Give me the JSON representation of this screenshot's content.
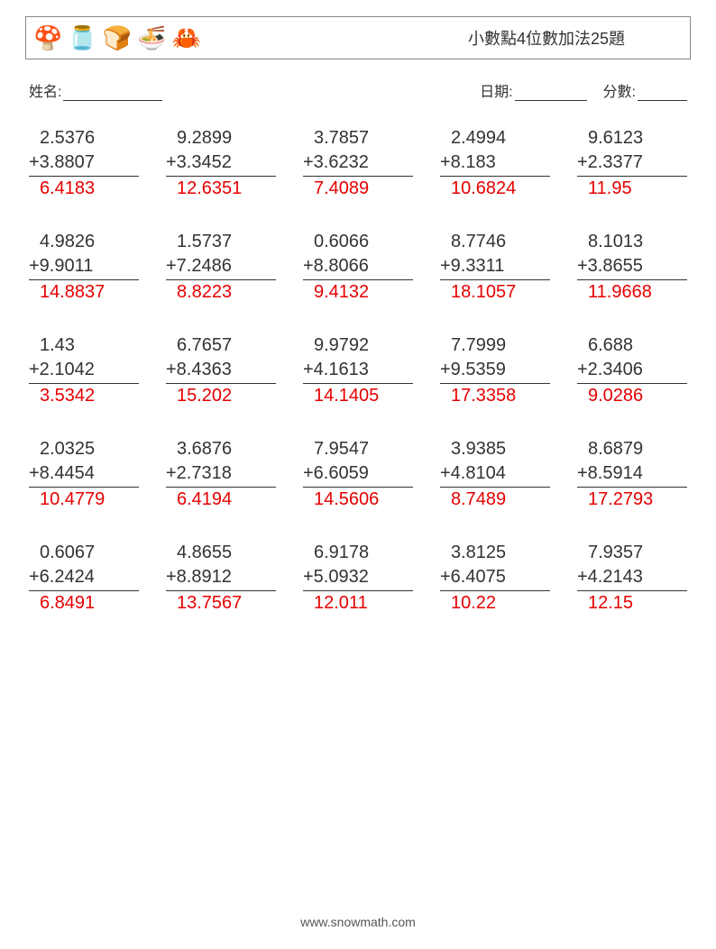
{
  "header": {
    "title": "小數點4位數加法25題",
    "icons": [
      "🍄",
      "🫙",
      "🍞",
      "🍜",
      "🦀"
    ]
  },
  "labels": {
    "name": "姓名:",
    "date": "日期:",
    "score": "分數:"
  },
  "style": {
    "operand_color": "#333333",
    "answer_color": "#e60000",
    "border_color": "#888888",
    "background": "#ffffff",
    "font_size_problem": 20,
    "font_size_title": 18,
    "columns": 5,
    "rows": 5,
    "operator": "+"
  },
  "problems": [
    {
      "a": "2.5376",
      "b": "3.8807",
      "ans": "6.4183"
    },
    {
      "a": "9.2899",
      "b": "3.3452",
      "ans": "12.6351"
    },
    {
      "a": "3.7857",
      "b": "3.6232",
      "ans": "7.4089"
    },
    {
      "a": "2.4994",
      "b": "8.183",
      "ans": "10.6824"
    },
    {
      "a": "9.6123",
      "b": "2.3377",
      "ans": "11.95"
    },
    {
      "a": "4.9826",
      "b": "9.9011",
      "ans": "14.8837"
    },
    {
      "a": "1.5737",
      "b": "7.2486",
      "ans": "8.8223"
    },
    {
      "a": "0.6066",
      "b": "8.8066",
      "ans": "9.4132"
    },
    {
      "a": "8.7746",
      "b": "9.3311",
      "ans": "18.1057"
    },
    {
      "a": "8.1013",
      "b": "3.8655",
      "ans": "11.9668"
    },
    {
      "a": "1.43",
      "b": "2.1042",
      "ans": "3.5342"
    },
    {
      "a": "6.7657",
      "b": "8.4363",
      "ans": "15.202"
    },
    {
      "a": "9.9792",
      "b": "4.1613",
      "ans": "14.1405"
    },
    {
      "a": "7.7999",
      "b": "9.5359",
      "ans": "17.3358"
    },
    {
      "a": "6.688",
      "b": "2.3406",
      "ans": "9.0286"
    },
    {
      "a": "2.0325",
      "b": "8.4454",
      "ans": "10.4779"
    },
    {
      "a": "3.6876",
      "b": "2.7318",
      "ans": "6.4194"
    },
    {
      "a": "7.9547",
      "b": "6.6059",
      "ans": "14.5606"
    },
    {
      "a": "3.9385",
      "b": "4.8104",
      "ans": "8.7489"
    },
    {
      "a": "8.6879",
      "b": "8.5914",
      "ans": "17.2793"
    },
    {
      "a": "0.6067",
      "b": "6.2424",
      "ans": "6.8491"
    },
    {
      "a": "4.8655",
      "b": "8.8912",
      "ans": "13.7567"
    },
    {
      "a": "6.9178",
      "b": "5.0932",
      "ans": "12.011"
    },
    {
      "a": "3.8125",
      "b": "6.4075",
      "ans": "10.22"
    },
    {
      "a": "7.9357",
      "b": "4.2143",
      "ans": "12.15"
    }
  ],
  "footer": "www.snowmath.com"
}
